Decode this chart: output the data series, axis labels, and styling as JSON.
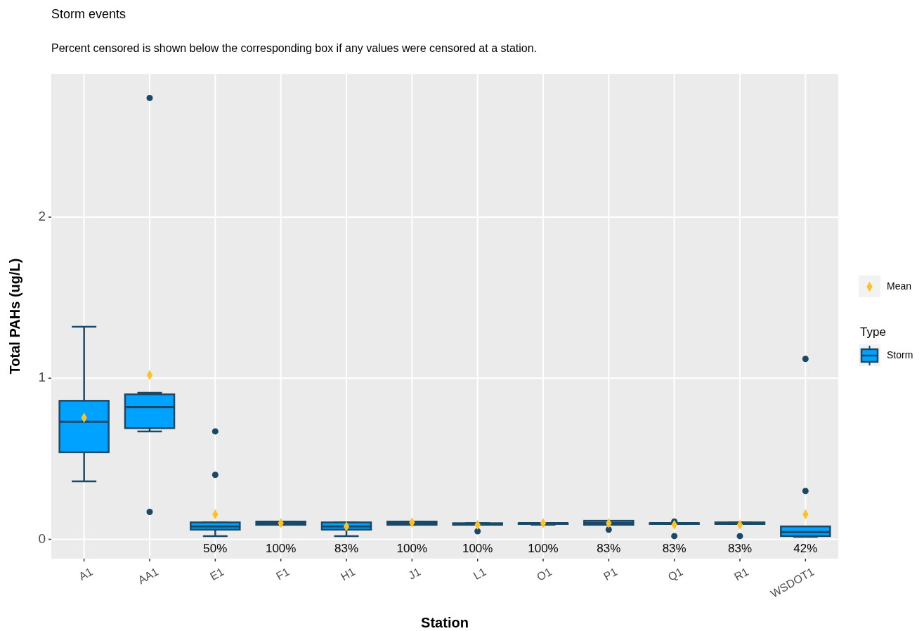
{
  "chart_data": {
    "type": "box",
    "title": "Storm events",
    "subtitle": "Percent censored is shown below the corresponding box if any values were censored at a station.",
    "xlabel": "Station",
    "ylabel": "Total PAHs (ug/L)",
    "legend_title": "Type",
    "categories": [
      "A1",
      "AA1",
      "E1",
      "F1",
      "H1",
      "J1",
      "L1",
      "O1",
      "P1",
      "Q1",
      "R1",
      "WSDOT1"
    ],
    "series": [
      {
        "name": "Storm",
        "color": "#00a2ff",
        "value_labels": [
          null,
          null,
          "50%",
          "100%",
          "83%",
          "100%",
          "100%",
          "100%",
          "83%",
          "83%",
          "83%",
          "42%"
        ],
        "boxes": [
          {
            "low": 0.36,
            "q1": 0.54,
            "median": 0.73,
            "q3": 0.86,
            "high": 1.32
          },
          {
            "low": 0.67,
            "q1": 0.69,
            "median": 0.82,
            "q3": 0.9,
            "high": 0.91,
            "outliers": [
              2.74,
              0.17
            ]
          },
          {
            "low": 0.02,
            "q1": 0.06,
            "median": 0.08,
            "q3": 0.105,
            "high": 0.105,
            "outliers": [
              0.67,
              0.4
            ]
          },
          {
            "low": 0.09,
            "q1": 0.09,
            "median": 0.1,
            "q3": 0.11,
            "high": 0.11
          },
          {
            "low": 0.02,
            "q1": 0.06,
            "median": 0.08,
            "q3": 0.105,
            "high": 0.105
          },
          {
            "low": 0.09,
            "q1": 0.09,
            "median": 0.1,
            "q3": 0.11,
            "high": 0.11
          },
          {
            "low": 0.09,
            "q1": 0.09,
            "median": 0.095,
            "q3": 0.1,
            "high": 0.1,
            "outliers": [
              0.05
            ]
          },
          {
            "low": 0.09,
            "q1": 0.095,
            "median": 0.1,
            "q3": 0.1,
            "high": 0.1
          },
          {
            "low": 0.09,
            "q1": 0.09,
            "median": 0.1,
            "q3": 0.115,
            "high": 0.115,
            "outliers": [
              0.06
            ]
          },
          {
            "low": 0.095,
            "q1": 0.095,
            "median": 0.1,
            "q3": 0.1,
            "high": 0.1,
            "outliers": [
              0.11,
              0.02
            ]
          },
          {
            "low": 0.095,
            "q1": 0.095,
            "median": 0.1,
            "q3": 0.105,
            "high": 0.105,
            "outliers": [
              0.02
            ]
          },
          {
            "low": 0.015,
            "q1": 0.02,
            "median": 0.045,
            "q3": 0.08,
            "high": 0.08,
            "outliers": [
              1.12,
              0.3
            ]
          }
        ]
      },
      {
        "name": "Mean",
        "type": "scatter",
        "color": "#ffc125",
        "marker": "diamond",
        "x": [
          "A1",
          "AA1",
          "E1",
          "F1",
          "H1",
          "J1",
          "L1",
          "O1",
          "P1",
          "Q1",
          "R1",
          "WSDOT1"
        ],
        "values": [
          0.755,
          1.02,
          0.155,
          0.1,
          0.08,
          0.105,
          0.09,
          0.1,
          0.1,
          0.09,
          0.09,
          0.155
        ]
      }
    ],
    "ylim": [
      -0.12,
      2.89
    ],
    "yticks": [
      0,
      1,
      2
    ],
    "grid": true,
    "legend": "right"
  }
}
